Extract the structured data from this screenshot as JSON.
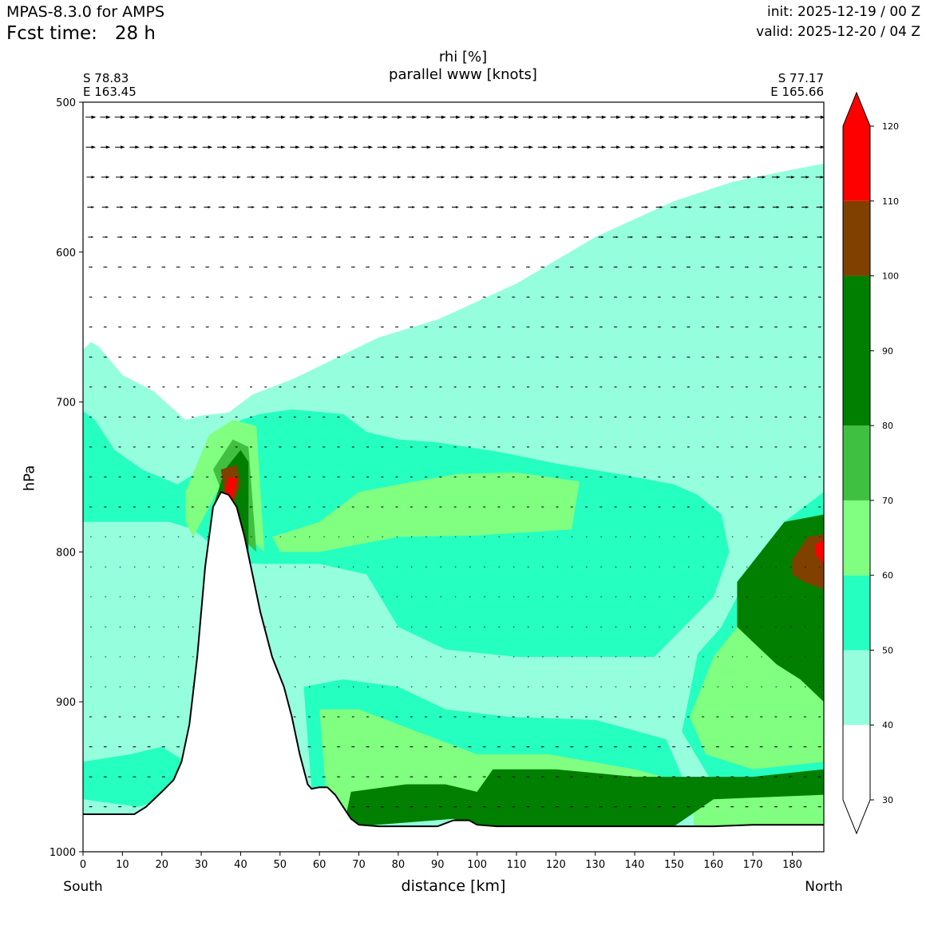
{
  "header": {
    "model": "MPAS-8.3.0 for AMPS",
    "fcst": "Fcst time:   28 h",
    "init": "init: 2025-12-19 / 00 Z",
    "valid": "valid: 2025-12-20 / 04 Z"
  },
  "chart_data": {
    "type": "contour-cross-section",
    "title_line1": "rhi [%]",
    "title_line2": "parallel www [knots]",
    "start_point": {
      "lat": "S 78.83",
      "lon": "E 163.45"
    },
    "end_point": {
      "lat": "S 77.17",
      "lon": "E 165.66"
    },
    "xlabel": "distance [km]",
    "ylabel": "hPa",
    "x_end_labels": {
      "left": "South",
      "right": "North"
    },
    "xlim": [
      0,
      188
    ],
    "ylim": [
      1000,
      500
    ],
    "x_ticks": [
      0,
      10,
      20,
      30,
      40,
      50,
      60,
      70,
      80,
      90,
      100,
      110,
      120,
      130,
      140,
      150,
      160,
      170,
      180
    ],
    "y_ticks": [
      500,
      600,
      700,
      800,
      900,
      1000
    ],
    "colorbar": {
      "ticks": [
        30,
        40,
        50,
        60,
        70,
        80,
        90,
        100,
        110,
        120
      ],
      "levels": [
        {
          "from": 30,
          "to": 40,
          "color": "#ffffff"
        },
        {
          "from": 40,
          "to": 50,
          "color": "#95ffdd"
        },
        {
          "from": 50,
          "to": 60,
          "color": "#25ffc0"
        },
        {
          "from": 60,
          "to": 70,
          "color": "#80ff80"
        },
        {
          "from": 70,
          "to": 80,
          "color": "#40c040"
        },
        {
          "from": 80,
          "to": 100,
          "color": "#007f00"
        },
        {
          "from": 100,
          "to": 110,
          "color": "#804000"
        },
        {
          "from": 110,
          "to": 120,
          "color": "#ff0000"
        }
      ],
      "extend": "both"
    },
    "terrain_surface_hpa": [
      [
        0,
        975
      ],
      [
        13,
        975
      ],
      [
        16,
        970
      ],
      [
        20,
        960
      ],
      [
        23,
        952
      ],
      [
        25,
        940
      ],
      [
        27,
        915
      ],
      [
        29,
        870
      ],
      [
        31,
        810
      ],
      [
        33,
        770
      ],
      [
        35,
        760
      ],
      [
        37,
        762
      ],
      [
        39,
        770
      ],
      [
        41,
        790
      ],
      [
        43,
        815
      ],
      [
        45,
        840
      ],
      [
        48,
        870
      ],
      [
        51,
        890
      ],
      [
        53,
        910
      ],
      [
        55,
        935
      ],
      [
        57,
        955
      ],
      [
        58,
        958
      ],
      [
        60,
        957
      ],
      [
        62,
        957
      ],
      [
        64,
        962
      ],
      [
        66,
        970
      ],
      [
        68,
        978
      ],
      [
        70,
        982
      ],
      [
        75,
        983
      ],
      [
        80,
        983
      ],
      [
        85,
        983
      ],
      [
        90,
        983
      ],
      [
        92,
        981
      ],
      [
        94,
        979
      ],
      [
        98,
        979
      ],
      [
        100,
        982
      ],
      [
        105,
        983
      ],
      [
        120,
        983
      ],
      [
        140,
        983
      ],
      [
        160,
        983
      ],
      [
        170,
        982
      ],
      [
        188,
        982
      ]
    ],
    "rhi_regions": [
      {
        "rhi": 45,
        "points": [
          [
            0,
            665
          ],
          [
            2,
            660
          ],
          [
            4,
            663
          ],
          [
            10,
            682
          ],
          [
            18,
            693
          ],
          [
            26,
            712
          ],
          [
            30,
            709
          ],
          [
            37,
            707
          ],
          [
            43,
            695
          ],
          [
            53,
            685
          ],
          [
            75,
            657
          ],
          [
            90,
            645
          ],
          [
            110,
            621
          ],
          [
            130,
            590
          ],
          [
            150,
            566
          ],
          [
            165,
            553
          ],
          [
            180,
            545
          ],
          [
            188,
            541
          ],
          [
            188,
            1000
          ],
          [
            0,
            1000
          ]
        ]
      },
      {
        "rhi": 50,
        "points": [
          [
            0,
            706
          ],
          [
            3,
            712
          ],
          [
            8,
            732
          ],
          [
            15,
            745
          ],
          [
            24,
            755
          ],
          [
            30,
            745
          ],
          [
            40,
            712
          ],
          [
            45,
            708
          ],
          [
            53,
            705
          ],
          [
            66,
            708
          ],
          [
            72,
            720
          ],
          [
            80,
            725
          ],
          [
            90,
            727
          ],
          [
            105,
            733
          ],
          [
            120,
            741
          ],
          [
            138,
            749
          ],
          [
            150,
            755
          ],
          [
            156,
            762
          ],
          [
            162,
            775
          ],
          [
            164,
            800
          ],
          [
            160,
            830
          ],
          [
            145,
            870
          ],
          [
            130,
            870
          ],
          [
            110,
            870
          ],
          [
            92,
            865
          ],
          [
            80,
            850
          ],
          [
            72,
            815
          ],
          [
            60,
            808
          ],
          [
            45,
            808
          ],
          [
            38,
            807
          ],
          [
            28,
            785
          ],
          [
            22,
            780
          ],
          [
            10,
            780
          ],
          [
            0,
            780
          ]
        ]
      },
      {
        "rhi": 50,
        "points": [
          [
            156,
            868
          ],
          [
            162,
            850
          ],
          [
            166,
            830
          ],
          [
            172,
            800
          ],
          [
            178,
            780
          ],
          [
            188,
            760
          ],
          [
            188,
            960
          ],
          [
            160,
            955
          ],
          [
            152,
            920
          ]
        ]
      },
      {
        "rhi": 50,
        "points": [
          [
            0,
            940
          ],
          [
            12,
            935
          ],
          [
            20,
            930
          ],
          [
            26,
            940
          ],
          [
            26,
            960
          ],
          [
            14,
            970
          ],
          [
            0,
            965
          ]
        ]
      },
      {
        "rhi": 50,
        "points": [
          [
            56,
            890
          ],
          [
            66,
            885
          ],
          [
            80,
            890
          ],
          [
            92,
            905
          ],
          [
            108,
            910
          ],
          [
            130,
            912
          ],
          [
            148,
            925
          ],
          [
            152,
            950
          ],
          [
            120,
            960
          ],
          [
            100,
            970
          ],
          [
            80,
            975
          ],
          [
            66,
            975
          ],
          [
            58,
            958
          ]
        ]
      },
      {
        "rhi": 60,
        "points": [
          [
            48,
            790
          ],
          [
            60,
            780
          ],
          [
            70,
            760
          ],
          [
            80,
            755
          ],
          [
            95,
            748
          ],
          [
            110,
            747
          ],
          [
            126,
            753
          ],
          [
            124,
            785
          ],
          [
            100,
            789
          ],
          [
            80,
            790
          ],
          [
            70,
            795
          ],
          [
            60,
            800
          ],
          [
            50,
            800
          ]
        ]
      },
      {
        "rhi": 60,
        "points": [
          [
            160,
            870
          ],
          [
            166,
            850
          ],
          [
            172,
            820
          ],
          [
            178,
            800
          ],
          [
            188,
            785
          ],
          [
            188,
            940
          ],
          [
            170,
            945
          ],
          [
            158,
            935
          ],
          [
            154,
            910
          ]
        ]
      },
      {
        "rhi": 60,
        "points": [
          [
            60,
            905
          ],
          [
            70,
            905
          ],
          [
            85,
            920
          ],
          [
            100,
            935
          ],
          [
            118,
            935
          ],
          [
            140,
            945
          ],
          [
            150,
            952
          ],
          [
            130,
            958
          ],
          [
            110,
            960
          ],
          [
            95,
            975
          ],
          [
            75,
            980
          ],
          [
            62,
            973
          ]
        ]
      },
      {
        "rhi": 60,
        "points": [
          [
            155,
            960
          ],
          [
            165,
            958
          ],
          [
            188,
            962
          ],
          [
            188,
            982
          ],
          [
            155,
            983
          ]
        ]
      },
      {
        "rhi": 60,
        "points": [
          [
            26,
            760
          ],
          [
            32,
            722
          ],
          [
            38,
            712
          ],
          [
            44,
            716
          ],
          [
            46,
            800
          ],
          [
            42,
            790
          ],
          [
            34,
            760
          ],
          [
            28,
            790
          ],
          [
            26,
            780
          ]
        ]
      },
      {
        "rhi": 75,
        "points": [
          [
            33,
            745
          ],
          [
            38,
            725
          ],
          [
            42,
            730
          ],
          [
            44,
            800
          ],
          [
            40,
            790
          ],
          [
            36,
            765
          ]
        ]
      },
      {
        "rhi": 90,
        "points": [
          [
            33,
            770
          ],
          [
            36,
            745
          ],
          [
            40,
            732
          ],
          [
            42,
            740
          ],
          [
            42,
            800
          ],
          [
            38,
            775
          ],
          [
            35,
            765
          ]
        ]
      },
      {
        "rhi": 90,
        "points": [
          [
            166,
            820
          ],
          [
            172,
            800
          ],
          [
            178,
            780
          ],
          [
            188,
            775
          ],
          [
            188,
            900
          ],
          [
            182,
            885
          ],
          [
            176,
            875
          ],
          [
            170,
            860
          ],
          [
            166,
            850
          ]
        ]
      },
      {
        "rhi": 90,
        "points": [
          [
            66,
            985
          ],
          [
            68,
            960
          ],
          [
            82,
            955
          ],
          [
            92,
            955
          ],
          [
            100,
            960
          ],
          [
            104,
            945
          ],
          [
            120,
            945
          ],
          [
            140,
            950
          ],
          [
            170,
            950
          ],
          [
            188,
            945
          ],
          [
            188,
            962
          ],
          [
            160,
            965
          ],
          [
            150,
            983
          ],
          [
            100,
            983
          ],
          [
            94,
            978
          ],
          [
            70,
            983
          ]
        ]
      },
      {
        "rhi": 105,
        "points": [
          [
            35,
            745
          ],
          [
            39,
            742
          ],
          [
            40,
            755
          ],
          [
            38,
            770
          ],
          [
            36,
            765
          ]
        ]
      },
      {
        "rhi": 105,
        "points": [
          [
            180,
            805
          ],
          [
            184,
            790
          ],
          [
            188,
            788
          ],
          [
            188,
            825
          ],
          [
            183,
            820
          ],
          [
            180,
            815
          ]
        ]
      },
      {
        "rhi": 115,
        "points": [
          [
            37,
            750
          ],
          [
            39,
            751
          ],
          [
            38,
            765
          ],
          [
            36,
            760
          ]
        ]
      },
      {
        "rhi": 115,
        "points": [
          [
            186,
            795
          ],
          [
            188,
            792
          ],
          [
            188,
            808
          ],
          [
            186,
            802
          ]
        ]
      }
    ],
    "wind_arrows": {
      "levels_hpa": [
        510,
        530,
        550,
        570,
        590,
        610,
        630,
        650,
        670,
        690,
        710,
        730,
        750,
        770,
        790,
        810,
        830,
        850,
        870,
        890,
        910,
        930,
        950,
        970
      ],
      "x_spacing_km": 3.7,
      "speed_by_level": [
        15,
        14,
        12,
        10,
        8,
        6,
        5,
        5,
        5,
        4,
        4,
        4,
        4,
        4,
        3,
        3,
        3,
        3,
        3,
        3,
        4,
        5,
        5,
        5
      ]
    }
  }
}
